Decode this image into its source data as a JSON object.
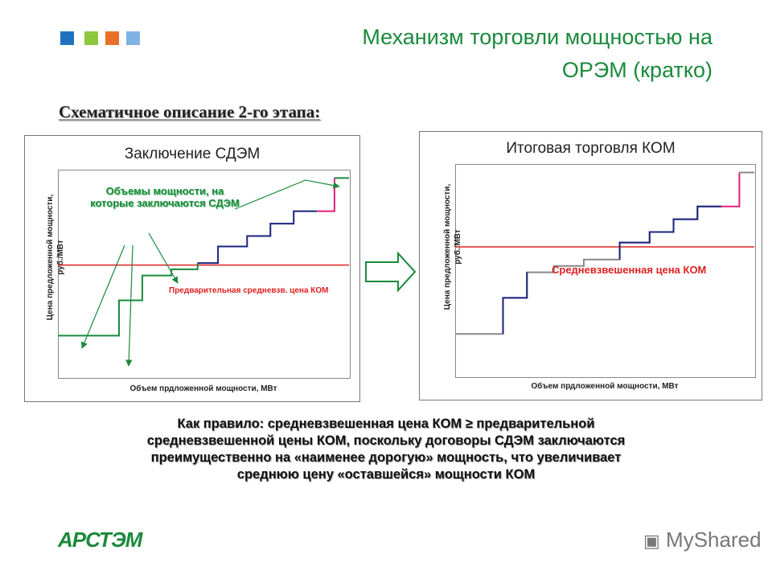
{
  "header": {
    "title_line1": "Механизм торговли мощностью на",
    "title_line2": "ОРЭМ (кратко)",
    "squares": [
      "#1e73be",
      "#8dc63f",
      "#e8702a",
      "#7fb2e5"
    ]
  },
  "subtitle": "Схематичное описание 2-го этапа:",
  "chart_data": [
    {
      "type": "line",
      "title": "Заключение СДЭМ",
      "xlabel": "Объем прдложенной мощности, МВт",
      "ylabel": "Цена предложенной мощности, руб./МВт",
      "xlim": [
        0,
        100
      ],
      "ylim": [
        0,
        100
      ],
      "series": [
        {
          "color": "#1a8a3c",
          "points": [
            [
              0,
              20
            ],
            [
              21,
              20
            ],
            [
              21,
              37
            ],
            [
              29,
              37
            ],
            [
              29,
              49
            ],
            [
              39,
              49
            ],
            [
              39,
              52
            ],
            [
              48,
              52
            ],
            [
              48,
              55
            ]
          ]
        },
        {
          "color": "#1a237e",
          "points": [
            [
              48,
              55
            ],
            [
              55,
              55
            ],
            [
              55,
              63
            ],
            [
              65,
              63
            ],
            [
              65,
              68
            ],
            [
              73,
              68
            ],
            [
              73,
              74
            ],
            [
              81,
              74
            ],
            [
              81,
              80
            ],
            [
              89,
              80
            ]
          ]
        },
        {
          "color": "#e0207a",
          "points": [
            [
              89,
              80
            ],
            [
              95,
              80
            ],
            [
              95,
              96
            ]
          ]
        },
        {
          "color": "#1a8a3c",
          "points": [
            [
              95,
              96
            ],
            [
              100,
              96
            ]
          ]
        }
      ],
      "reference_line": {
        "y": 54,
        "color": "#e02020",
        "label": "Предварительная средневзв. цена КОМ"
      },
      "annotation": "Объемы мощности, на которые заключаются СДЭМ"
    },
    {
      "type": "line",
      "title": "Итоговая торговля КОМ",
      "xlabel": "Объем прдложенной мощности, МВт",
      "ylabel": "Цена предложенной мощности, руб./МВт",
      "xlim": [
        0,
        100
      ],
      "ylim": [
        0,
        100
      ],
      "series": [
        {
          "color": "#888888",
          "points": [
            [
              0,
              20
            ],
            [
              16,
              20
            ],
            [
              16,
              37
            ],
            [
              24,
              37
            ],
            [
              24,
              49
            ],
            [
              33,
              49
            ],
            [
              33,
              52
            ],
            [
              43,
              52
            ],
            [
              43,
              55
            ],
            [
              55,
              55
            ],
            [
              55,
              63
            ],
            [
              65,
              63
            ],
            [
              65,
              68
            ],
            [
              73,
              68
            ],
            [
              73,
              74
            ],
            [
              81,
              74
            ],
            [
              81,
              80
            ],
            [
              89,
              80
            ]
          ]
        },
        {
          "color": "#1a237e",
          "points": [
            [
              16,
              20
            ],
            [
              16,
              37
            ],
            [
              24,
              37
            ],
            [
              24,
              49
            ]
          ]
        },
        {
          "color": "#1a237e",
          "points": [
            [
              55,
              55
            ],
            [
              55,
              63
            ],
            [
              65,
              63
            ],
            [
              65,
              68
            ],
            [
              73,
              68
            ],
            [
              73,
              74
            ],
            [
              81,
              74
            ],
            [
              81,
              80
            ],
            [
              89,
              80
            ]
          ]
        },
        {
          "color": "#e0207a",
          "points": [
            [
              89,
              80
            ],
            [
              95,
              80
            ],
            [
              95,
              96
            ]
          ]
        },
        {
          "color": "#888888",
          "points": [
            [
              95,
              96
            ],
            [
              100,
              96
            ]
          ]
        }
      ],
      "reference_line": {
        "y": 61,
        "color": "#e02020",
        "label": "Средневзвешенная цена КОМ"
      }
    }
  ],
  "body_text": {
    "line1": "Как правило: средневзвешенная цена КОМ ≥ предварительной",
    "line2": "средневзвешенной цены КОМ, поскольку договоры СДЭМ заключаются",
    "line3": "преимущественно на «наименее дорогую» мощность, что увеличивает",
    "line4": "среднюю цену «оставшейся» мощности КОМ"
  },
  "footer": {
    "logo_left": "АРСТЭМ",
    "logo_right": "MyShared"
  }
}
